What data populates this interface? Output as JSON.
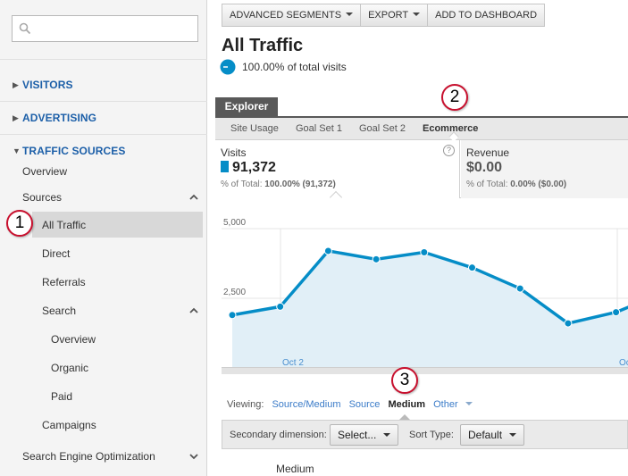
{
  "sidebar": {
    "search_placeholder": "",
    "sections": [
      {
        "label": "VISITORS"
      },
      {
        "label": "ADVERTISING"
      },
      {
        "label": "TRAFFIC SOURCES"
      }
    ],
    "items": {
      "overview": "Overview",
      "sources": "Sources",
      "all_traffic": "All Traffic",
      "direct": "Direct",
      "referrals": "Referrals",
      "search": "Search",
      "search_overview": "Overview",
      "organic": "Organic",
      "paid": "Paid",
      "campaigns": "Campaigns",
      "seo": "Search Engine Optimization"
    }
  },
  "badges": [
    "1",
    "2",
    "3"
  ],
  "toolbar": {
    "advanced_segments": "ADVANCED SEGMENTS",
    "export": "EXPORT",
    "add_to_dashboard": "ADD TO DASHBOARD"
  },
  "header": {
    "title": "All Traffic",
    "pct_total_visits": "100.00% of total visits"
  },
  "explorer": {
    "tab": "Explorer",
    "subtabs": [
      "Site Usage",
      "Goal Set 1",
      "Goal Set 2",
      "Ecommerce"
    ],
    "active_subtab": "Ecommerce"
  },
  "metrics": {
    "visits": {
      "label": "Visits",
      "value": "91,372",
      "sub_prefix": "% of Total: ",
      "sub_value": "100.00% (91,372)"
    },
    "revenue": {
      "label": "Revenue",
      "value": "$0.00",
      "sub_prefix": "% of Total: ",
      "sub_value": "0.00% ($0.00)"
    },
    "help": "?"
  },
  "chart_data": {
    "type": "area",
    "y_tick_labels": [
      "5,000",
      "2,500"
    ],
    "x_tick_labels": [
      "Oct 2",
      "Oc"
    ],
    "ylim": [
      0,
      5000
    ],
    "series": [
      {
        "values": [
          1900,
          2200,
          4200,
          3900,
          4150,
          3600,
          2850,
          1600,
          2000,
          2700
        ]
      }
    ],
    "color": "#058dc7",
    "fill": "#e1eff7",
    "grid": true
  },
  "viewing": {
    "label": "Viewing:",
    "options": [
      "Source/Medium",
      "Source",
      "Medium",
      "Other"
    ],
    "active": "Medium"
  },
  "secondary": {
    "label": "Secondary dimension:",
    "select_value": "Select...",
    "sort_label": "Sort Type:",
    "sort_value": "Default"
  },
  "table": {
    "column_header": "Medium"
  }
}
